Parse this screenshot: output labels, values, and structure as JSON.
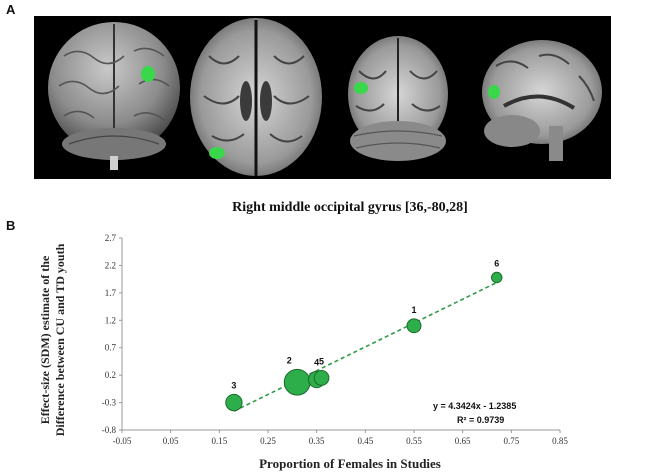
{
  "panel_a_label": "A",
  "panel_b_label": "B",
  "chart_data": {
    "type": "scatter",
    "title": "Right middle occipital gyrus [36,-80,28]",
    "xlabel": "Proportion  of Females in Studies",
    "ylabel_line1": "Effect-size (SDM) estimate of the",
    "ylabel_line2": "Difference between CU and TD youth",
    "xlim": [
      -0.05,
      0.85
    ],
    "ylim": [
      -0.8,
      2.7
    ],
    "xticks": [
      "-0.05",
      "0.05",
      "0.15",
      "0.25",
      "0.35",
      "0.45",
      "0.55",
      "0.65",
      "0.75",
      "0.85"
    ],
    "yticks": [
      "-0.8",
      "-0.3",
      "0.2",
      "0.7",
      "1.2",
      "1.7",
      "2.2",
      "2.7"
    ],
    "points": [
      {
        "label": "3",
        "x": 0.18,
        "y": -0.3,
        "weight": 2.2
      },
      {
        "label": "2",
        "x": 0.31,
        "y": 0.07,
        "weight": 5.5
      },
      {
        "label": "4",
        "x": 0.35,
        "y": 0.12,
        "weight": 2.2
      },
      {
        "label": "5",
        "x": 0.36,
        "y": 0.15,
        "weight": 1.8
      },
      {
        "label": "1",
        "x": 0.55,
        "y": 1.1,
        "weight": 1.6
      },
      {
        "label": "6",
        "x": 0.72,
        "y": 1.98,
        "weight": 0.9
      }
    ],
    "regression": {
      "slope": 4.3424,
      "intercept": -1.2385,
      "x_from": 0.18,
      "x_to": 0.72
    },
    "equation": "y = 4.3424x - 1.2385",
    "r_squared": "R² = 0.9739",
    "marker_color": "#2eae4a",
    "marker_edge": "#1b6b2c",
    "line_color": "#2e9b46"
  }
}
